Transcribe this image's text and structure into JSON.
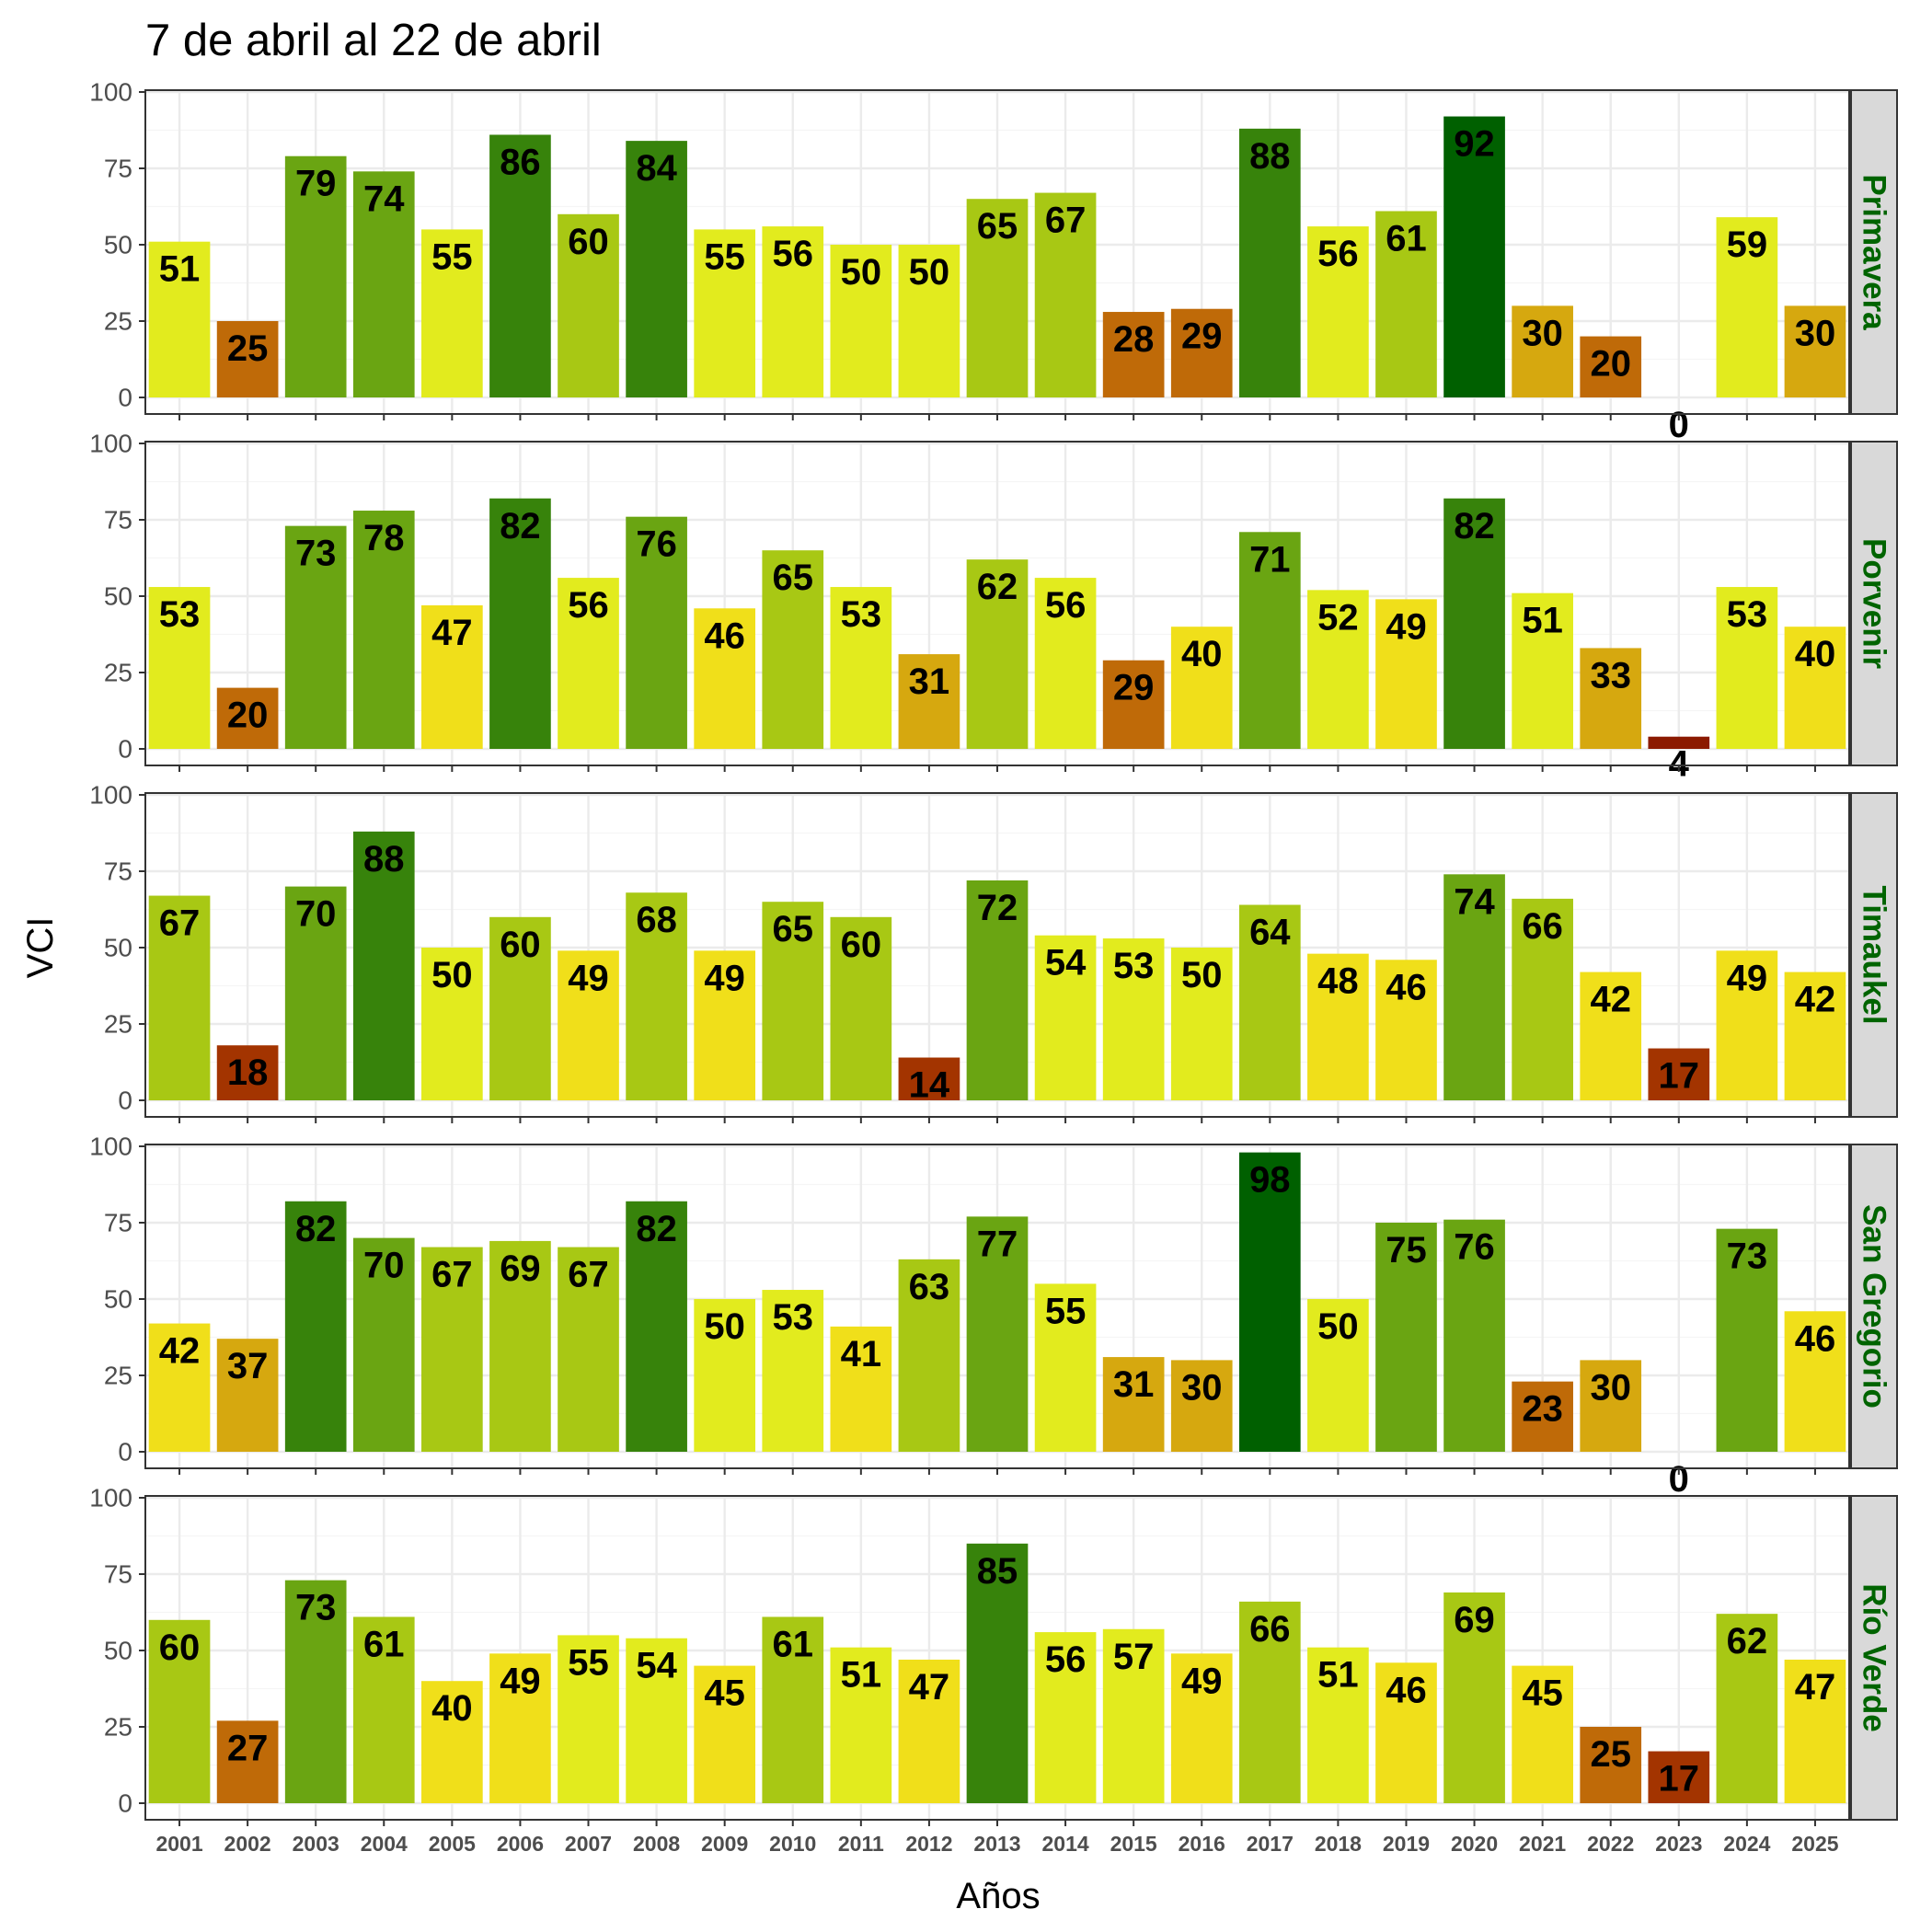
{
  "chart_data": {
    "type": "bar",
    "title": "7 de abril al 22 de abril",
    "xlabel": "Años",
    "ylabel": "VCI",
    "ylim": [
      0,
      100
    ],
    "yticks": [
      "0",
      "25",
      "50",
      "75",
      "100"
    ],
    "grid": true,
    "facet_strip_color": "#006400",
    "categories": [
      "2001",
      "2002",
      "2003",
      "2004",
      "2005",
      "2006",
      "2007",
      "2008",
      "2009",
      "2010",
      "2011",
      "2012",
      "2013",
      "2014",
      "2015",
      "2016",
      "2017",
      "2018",
      "2019",
      "2020",
      "2021",
      "2022",
      "2023",
      "2024",
      "2025"
    ],
    "color_scale": [
      {
        "min": 0,
        "max": 10,
        "color": "#8b1a00"
      },
      {
        "min": 10,
        "max": 20,
        "color": "#a33400"
      },
      {
        "min": 20,
        "max": 30,
        "color": "#bf6a08"
      },
      {
        "min": 30,
        "max": 40,
        "color": "#d6a80f"
      },
      {
        "min": 40,
        "max": 50,
        "color": "#f0df1a"
      },
      {
        "min": 50,
        "max": 60,
        "color": "#e2eb1e"
      },
      {
        "min": 60,
        "max": 70,
        "color": "#a8c814"
      },
      {
        "min": 70,
        "max": 80,
        "color": "#6aa512"
      },
      {
        "min": 80,
        "max": 90,
        "color": "#37830b"
      },
      {
        "min": 90,
        "max": 101,
        "color": "#006000"
      }
    ],
    "series": [
      {
        "name": "Primavera",
        "values": [
          51,
          25,
          79,
          74,
          55,
          86,
          60,
          84,
          55,
          56,
          50,
          50,
          65,
          67,
          28,
          29,
          88,
          56,
          61,
          92,
          30,
          20,
          0,
          59,
          30
        ]
      },
      {
        "name": "Porvenir",
        "values": [
          53,
          20,
          73,
          78,
          47,
          82,
          56,
          76,
          46,
          65,
          53,
          31,
          62,
          56,
          29,
          40,
          71,
          52,
          49,
          82,
          51,
          33,
          4,
          53,
          40
        ]
      },
      {
        "name": "Timaukel",
        "values": [
          67,
          18,
          70,
          88,
          50,
          60,
          49,
          68,
          49,
          65,
          60,
          14,
          72,
          54,
          53,
          50,
          64,
          48,
          46,
          74,
          66,
          42,
          17,
          49,
          42
        ]
      },
      {
        "name": "San Gregorio",
        "values": [
          42,
          37,
          82,
          70,
          67,
          69,
          67,
          82,
          50,
          53,
          41,
          63,
          77,
          55,
          31,
          30,
          98,
          50,
          75,
          76,
          23,
          30,
          0,
          73,
          46
        ]
      },
      {
        "name": "Río Verde",
        "values": [
          60,
          27,
          73,
          61,
          40,
          49,
          55,
          54,
          45,
          61,
          51,
          47,
          85,
          56,
          57,
          49,
          66,
          51,
          46,
          69,
          45,
          25,
          17,
          62,
          47
        ]
      }
    ]
  }
}
